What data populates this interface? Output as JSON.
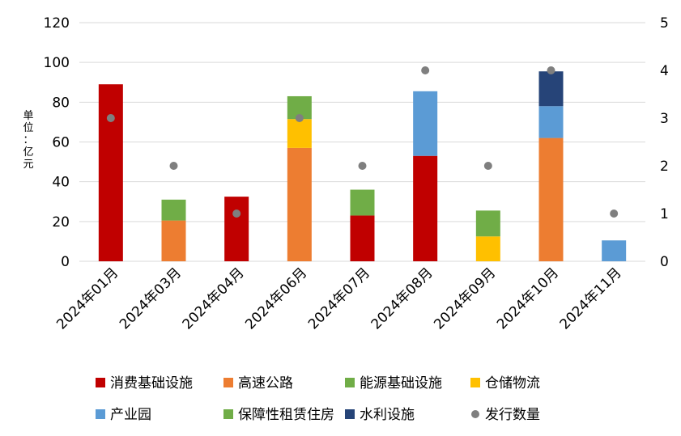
{
  "chart_data": {
    "type": "bar",
    "stacked": true,
    "ylabel": "单位：亿元",
    "ylim": [
      0,
      120
    ],
    "yticks": [
      0,
      20,
      40,
      60,
      80,
      100,
      120
    ],
    "y2lim": [
      0,
      5
    ],
    "y2ticks": [
      0,
      1,
      2,
      3,
      4,
      5
    ],
    "grid": true,
    "legend_position": "bottom",
    "categories": [
      "2024年01月",
      "2024年03月",
      "2024年04月",
      "2024年06月",
      "2024年07月",
      "2024年08月",
      "2024年09月",
      "2024年10月",
      "2024年11月"
    ],
    "series": [
      {
        "name": "消费基础设施",
        "color": "#C00000",
        "values": [
          89,
          0,
          32.5,
          0,
          23,
          53,
          0,
          0,
          0
        ]
      },
      {
        "name": "高速公路",
        "color": "#ED7D31",
        "values": [
          0,
          20.5,
          0,
          57,
          0,
          0,
          0,
          62,
          0
        ]
      },
      {
        "name": "能源基础设施",
        "color": "#70AD47",
        "values": [
          0,
          0,
          0,
          0,
          13,
          0,
          0,
          0,
          0
        ]
      },
      {
        "name": "仓储物流",
        "color": "#FFC000",
        "values": [
          0,
          0,
          0,
          14.5,
          0,
          0,
          12.5,
          0,
          0
        ]
      },
      {
        "name": "产业园",
        "color": "#5B9BD5",
        "values": [
          0,
          0,
          0,
          0,
          0,
          32.5,
          0,
          16,
          10.5
        ]
      },
      {
        "name": "保障性租赁住房",
        "color": "#70AD47",
        "values": [
          0,
          10.5,
          0,
          11.5,
          0,
          0,
          13,
          0,
          0
        ]
      },
      {
        "name": "水利设施",
        "color": "#264478",
        "values": [
          0,
          0,
          0,
          0,
          0,
          0,
          0,
          17.5,
          0
        ]
      }
    ],
    "line_series": {
      "name": "发行数量",
      "axis": "right",
      "color": "#7F7F7F",
      "values": [
        3,
        2,
        1,
        3,
        2,
        4,
        2,
        4,
        1
      ]
    },
    "legend": [
      {
        "label": "消费基础设施",
        "color": "#C00000",
        "shape": "square"
      },
      {
        "label": "高速公路",
        "color": "#ED7D31",
        "shape": "square"
      },
      {
        "label": "能源基础设施",
        "color": "#70AD47",
        "shape": "square"
      },
      {
        "label": "仓储物流",
        "color": "#FFC000",
        "shape": "square"
      },
      {
        "label": "产业园",
        "color": "#5B9BD5",
        "shape": "square"
      },
      {
        "label": "保障性租赁住房",
        "color": "#70AD47",
        "shape": "square"
      },
      {
        "label": "水利设施",
        "color": "#264478",
        "shape": "square"
      },
      {
        "label": "发行数量",
        "color": "#7F7F7F",
        "shape": "circle"
      }
    ]
  }
}
